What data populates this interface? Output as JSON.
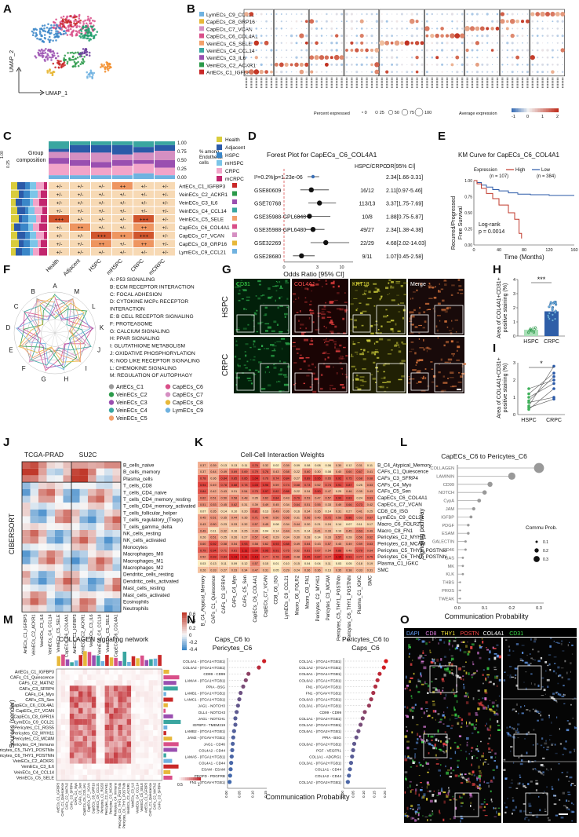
{
  "panels": {
    "A": {
      "letter": "A",
      "xlabel": "UMAP_1",
      "ylabel": "UMAP_2"
    },
    "B": {
      "letter": "B",
      "rows": [
        "LymECs_C9_CCL21",
        "CapECs_C8_GRP16",
        "CapECs_C7_VCAN",
        "CapECs_C6_COL4A1",
        "VeinECs_C5_SELE",
        "VeinECs_C4_CCL14",
        "VeinECs_C3_IL6",
        "VeinECs_C2_ACKR1",
        "ArtECs_C1_IGFBP3"
      ],
      "row_colors": [
        "#6fb2e0",
        "#e7b83a",
        "#d58fc2",
        "#d94f89",
        "#f2a06b",
        "#3aa6a0",
        "#9a4fb0",
        "#2c9a4a",
        "#c92828"
      ],
      "legend_pct_title": "Percent expressed",
      "legend_pct": [
        "0",
        "25",
        "50",
        "75",
        "100"
      ],
      "legend_exp_title": "Average expression",
      "legend_exp": [
        "-1",
        "0",
        "1",
        "2"
      ]
    },
    "C": {
      "letter": "C",
      "group_title": "Group composition",
      "y_ticks": [
        "1.00",
        "0.75",
        "0.50",
        "0.25",
        "0.00"
      ],
      "y_label": "% among Endothelial cells",
      "legend": [
        {
          "label": "Health",
          "color": "#d9cc3c"
        },
        {
          "label": "Adjacent",
          "color": "#2b5aa8"
        },
        {
          "label": "HSPC",
          "color": "#3a86c8"
        },
        {
          "label": "mHSPC",
          "color": "#7bc5e8"
        },
        {
          "label": "CRPC",
          "color": "#f2a4c9"
        },
        {
          "label": "mCRPC",
          "color": "#c2266e"
        }
      ],
      "columns": [
        "Health",
        "Adjacent",
        "HSPC",
        "mHSPC",
        "CRPC",
        "mCRPC"
      ],
      "rows": [
        "ArtECs_C1_IGFBP3",
        "VeinECs_C2_ACKR1",
        "VeinECs_C3_IL6",
        "VeinECs_C4_CCL14",
        "VeinECs_C5_SELE",
        "CapECs_C6_COL4A1",
        "CapECs_C7_VCAN",
        "CapECs_C8_GRP16",
        "LymECs_C9_CCL21"
      ],
      "cells": [
        [
          "+/-",
          "+/-",
          "+/-",
          "++",
          "+/-",
          "+/-"
        ],
        [
          "+/-",
          "+/-",
          "+/-",
          "+/-",
          "+/-",
          "+/-"
        ],
        [
          "+/-",
          "+/-",
          "+/-",
          "+/-",
          "+/-",
          "+/-"
        ],
        [
          "+/-",
          "+/-",
          "+/-",
          "+/-",
          "+/-",
          "+/-"
        ],
        [
          "+++",
          "+/-",
          "+/-",
          "+/-",
          "+++",
          "+/-"
        ],
        [
          "+/-",
          "++",
          "+/-",
          "+/-",
          "++",
          "+/-"
        ],
        [
          "+/-",
          "+/-",
          "+++",
          "++",
          "+++",
          "+/-"
        ],
        [
          "+/-",
          "+/-",
          "++",
          "+/-",
          "++",
          "+/-"
        ],
        [
          "+/-",
          "+/-",
          "+/-",
          "+/-",
          "+/-",
          "+/-"
        ]
      ]
    },
    "D": {
      "letter": "D",
      "title": "Forest Plot for CapECs_C6_COL4A1",
      "col1": "HSPC/CRPC",
      "col2": "OR[95% CI]",
      "xlabel": "Odds Ratio [95% CI]",
      "xticks": [
        "0",
        "3",
        "10"
      ],
      "rows": [
        {
          "study": "I²=0.2%|p=1.23e-06",
          "ratio": "",
          "or": "2.34[1.66-3.31]"
        },
        {
          "study": "GSE80609",
          "ratio": "16/12",
          "or": "2.11[0.97-5.46]"
        },
        {
          "study": "GSE70768",
          "ratio": "113/13",
          "or": "3.37[1.75-7.69]"
        },
        {
          "study": "GSE35988-GPL6848",
          "ratio": "10/8",
          "or": "1.88[0.75-5.87]"
        },
        {
          "study": "GSE35988-GPL6480",
          "ratio": "49/27",
          "or": "2.34[1.38-4.38]"
        },
        {
          "study": "GSE32269",
          "ratio": "22/29",
          "or": "4.68[2.02-14.03]"
        },
        {
          "study": "GSE28680",
          "ratio": "9/11",
          "or": "1.07[0.45-2.58]"
        }
      ]
    },
    "E": {
      "letter": "E",
      "title": "KM Curve for CapECs_C6_COL4A1",
      "legend_title": "Expression",
      "high": "High",
      "low": "Low",
      "high_n": "(n = 107)",
      "low_n": "(n = 384)",
      "ylabel": "Recurred/Progressed Free Survival",
      "xlabel": "Time (Months)",
      "test": "Log-rank",
      "p": "p = 0.0014",
      "xticks": [
        "0",
        "40",
        "80",
        "120",
        "160"
      ],
      "yticks": [
        "0.00",
        "0.25",
        "0.50",
        "0.75",
        "1.00"
      ]
    },
    "F": {
      "letter": "F",
      "axes": [
        "A",
        "M",
        "L",
        "K",
        "J",
        "I",
        "H",
        "G",
        "F",
        "E",
        "D",
        "C",
        "B"
      ],
      "pathways": [
        "A: P53 SIGNALING",
        "B: ECM RECEPTOR INTERACTION",
        "C: FOCAL ADHESION",
        "D: CYTOKINE MCPc RECEPTOR",
        "INTERACTION",
        "E: B CELL RECEPTOR SIGNALING",
        "F: PROTEASOME",
        "G: CALCIUM SIGNALING",
        "H: PPAR SIGNALING",
        "I: GLUTATHIONE METABOLISM",
        "J: OXIDATIVE PHOSPHORYLATION",
        "K: NOD LIKE RECEPTOR SIGNALING",
        "L: CHEMOKINE SIGNALING",
        "M: REGULATION OF AUTOPHAGY"
      ],
      "legend": [
        {
          "label": "ArtECs_C1",
          "color": "#9a9a9a"
        },
        {
          "label": "CapECs_C6",
          "color": "#d94f89"
        },
        {
          "label": "VeinECs_C2",
          "color": "#2c9a4a"
        },
        {
          "label": "CapECs_C7",
          "color": "#d58fc2"
        },
        {
          "label": "VeinECs_C3",
          "color": "#9a4fb0"
        },
        {
          "label": "CapECs_C8",
          "color": "#e7b83a"
        },
        {
          "label": "VeinECs_C4",
          "color": "#3aa6a0"
        },
        {
          "label": "LymECs_C9",
          "color": "#6fb2e0"
        },
        {
          "label": "VeinECs_C5",
          "color": "#f2a06b"
        }
      ]
    },
    "G": {
      "letter": "G",
      "channels": [
        "CD31",
        "COL4A1",
        "KRT18",
        "Merge"
      ],
      "rows": [
        "HSPC",
        "CRPC"
      ]
    },
    "H": {
      "letter": "H",
      "ylabel": "Area of COL4A1+CD31+ positive staining (%)",
      "categories": [
        "HSPC",
        "CRPC"
      ],
      "sig": "***",
      "yticks": [
        "0",
        "1",
        "2",
        "3",
        "4"
      ]
    },
    "I": {
      "letter": "I",
      "ylabel": "Area of COL4A1+CD31+ positive staining (%)",
      "categories": [
        "HSPC",
        "CRPC"
      ],
      "sig": "*",
      "yticks": [
        "0",
        "1",
        "2",
        "3"
      ]
    },
    "J": {
      "letter": "J",
      "cohorts": [
        "TCGA-PRAD",
        "SU2C"
      ],
      "ylabel": "CIBERSORT",
      "rows": [
        "B_cells_naive",
        "B_cells_memory",
        "Plasma_cells",
        "T_cells_CD8",
        "T_cells_CD4_naive",
        "T_cells_CD4_memory_resting",
        "T_cells_CD4_memory_activated",
        "T_cells_follicular_helper",
        "T_cells_regulatory_(Tregs)",
        "T_cells_gamma_delta",
        "NK_cells_resting",
        "NK_cells_activated",
        "Monocytes",
        "Macrophages_M0",
        "Macrophages_M1",
        "Macrophages_M2",
        "Dendritic_cells_resting",
        "Dendritic_cells_activated",
        "Mast_cells_resting",
        "Mast_cells_activated",
        "Eosinophils",
        "Neutrophils"
      ],
      "cols": [
        "ArtECs_C1_IGFBP3",
        "VeinECs_C2_ACKR1",
        "VeinECs_C3_IL6",
        "VeinECs_C4_CCL14",
        "VeinECs_C5_SELE",
        "CapECs_C6_COL4A1",
        "ArtECs_C1_IGFBP3",
        "VeinECs_C2_ACKR1",
        "VeinECs_C3_IL6",
        "VeinECs_C4_CCL14",
        "VeinECs_C5_SELE",
        "CapECs_C6_COL4A1"
      ],
      "legend": [
        "0.6",
        "0.4",
        "0.2",
        "0",
        "-0.2",
        "-0.4"
      ]
    },
    "K": {
      "letter": "K",
      "title": "Cell-Cell Interaction Weights",
      "rows": [
        "B_C4_Atypical_Memory",
        "CAFs_C1_Quiescence",
        "CAFs_C3_SFRP4",
        "CAFs_C4_Myo",
        "CAFs_C5_Sen",
        "CapECs_C6_COL4A1",
        "CapECs_C7_VCAN",
        "CD8_C6_ISG",
        "LymECs_C9_CCL21",
        "Macro_C6_FOLR2",
        "Macro_C8_FN1",
        "Pericytes_C2_MYH11",
        "Pericytes_C3_MCAM",
        "Pericytes_C5_THY1_POSTNlo",
        "Pericytes_C6_THY1_POSTNhi",
        "Plasma_C1_IGKC",
        "SMC"
      ],
      "cols": [
        "B_C4_Atypical_Memory",
        "CAFs_C1_Quiescence",
        "CAFs_C3_SFRP4",
        "CAFs_C4_Myo",
        "CAFs_C5_Sen",
        "CapECs_C6_COL4A1",
        "CapECs_C7_VCAN",
        "CD8_C6_ISG",
        "LymECs_C9_CCL21",
        "Macro_C6_FOLR2",
        "Macro_C8_FN1",
        "Pericytes_C2_MYH11",
        "Pericytes_C3_MCAM",
        "Pericytes_C5_THY1_POSTNlo",
        "Pericytes_C6_THY1_POSTNhi",
        "Plasma_C1_IGKC",
        "SMC"
      ],
      "values": [
        [
          0.37,
          0.39,
          0.13,
          0.13,
          0.11,
          0.76,
          0.32,
          0.02,
          0.39,
          0.09,
          0.08,
          0.08,
          0.06,
          0.3,
          0.12,
          0.31,
          0.11
        ],
        [
          0.37,
          0.44,
          0.49,
          0.69,
          0.69,
          0.79,
          0.76,
          0.43,
          0.58,
          0.22,
          0.6,
          0.3,
          0.08,
          0.4,
          0.6,
          0.67,
          0.41
        ],
        [
          0.78,
          0.36,
          0.84,
          0.85,
          0.85,
          1.04,
          0.76,
          0.74,
          0.84,
          0.27,
          0.89,
          0.95,
          0.65,
          0.92,
          0.75,
          0.68,
          0.68
        ],
        [
          0.94,
          0.49,
          0.78,
          0.88,
          0.78,
          1.03,
          0.96,
          0.59,
          0.74,
          0.68,
          0.73,
          0.52,
          0.74,
          0.91,
          0.87,
          0.25,
          0.53
        ],
        [
          0.84,
          0.42,
          0.43,
          0.31,
          0.54,
          0.75,
          0.97,
          0.82,
          0.88,
          0.22,
          0.34,
          0.9,
          0.47,
          0.25,
          0.46,
          0.35,
          0.43
        ],
        [
          0.62,
          0.51,
          0.5,
          0.58,
          0.48,
          0.35,
          0.62,
          0.84,
          0.43,
          0.79,
          0.53,
          0.47,
          0.57,
          0.9,
          0.83,
          0.24,
          0.63
        ],
        [
          0.51,
          0.53,
          0.45,
          0.62,
          0.31,
          0.39,
          0.49,
          0.45,
          0.34,
          0.64,
          0.51,
          0.55,
          0.33,
          0.49,
          0.66,
          0.73,
          0.42
        ],
        [
          0.07,
          0.35,
          0.14,
          0.1,
          0.2,
          0.81,
          0.13,
          0.49,
          0.36,
          0.16,
          0.34,
          0.35,
          0.14,
          0.31,
          0.27,
          0.41,
          0.25
        ],
        [
          0.45,
          0.51,
          0.35,
          0.44,
          0.35,
          0.71,
          0.49,
          0.5,
          0.56,
          0.31,
          0.56,
          0.46,
          0.72,
          0.58,
          0.86,
          0.53,
          0.67
        ],
        [
          0.43,
          0.5,
          0.23,
          0.33,
          0.32,
          0.57,
          0.45,
          0.08,
          0.34,
          0.44,
          0.3,
          0.21,
          0.24,
          0.14,
          0.07,
          0.11,
          0.17
        ],
        [
          0.49,
          0.11,
          0.32,
          0.16,
          0.25,
          0.39,
          0.04,
          0.14,
          0.44,
          0.21,
          0.14,
          0.41,
          0.33,
          0.16,
          0.45,
          0.63,
          0.49
        ],
        [
          0.26,
          0.51,
          0.25,
          0.26,
          0.27,
          0.57,
          0.42,
          0.29,
          0.34,
          0.3,
          0.28,
          0.14,
          0.33,
          0.57,
          0.28,
          0.56,
          0.62
        ],
        [
          0.6,
          0.92,
          0.58,
          0.54,
          0.93,
          0.58,
          0.62,
          0.93,
          0.88,
          0.49,
          0.64,
          0.43,
          0.57,
          0.45,
          0.49,
          0.59,
          0.63
        ],
        [
          0.79,
          0.94,
          0.71,
          0.81,
          1.11,
          1.0,
          0.95,
          0.91,
          0.75,
          0.52,
          0.81,
          0.67,
          0.54,
          0.88,
          0.48,
          0.79,
          0.64
        ],
        [
          0.52,
          0.93,
          0.84,
          1.13,
          1.11,
          1.13,
          0.77,
          0.76,
          0.86,
          0.48,
          0.95,
          0.87,
          0.77,
          1.15,
          0.91,
          0.77,
          0.75
        ],
        [
          0.03,
          0.13,
          0.11,
          0.09,
          0.12,
          0.57,
          0.15,
          0.01,
          0.1,
          0.15,
          0.04,
          0.04,
          0.11,
          0.03,
          0.05,
          0.18,
          0.19
        ],
        [
          0.26,
          0.33,
          0.27,
          0.33,
          0.34,
          0.47,
          0.31,
          0.05,
          0.29,
          0.24,
          0.36,
          0.36,
          0.13,
          0.35,
          0.38,
          0.33,
          0.31
        ]
      ]
    },
    "L": {
      "letter": "L",
      "title": "CapECs_C6 to Pericytes_C6",
      "ylabel": "Signaling pathway",
      "xlabel": "Communication Probability",
      "legend_title": "Commu Prob.",
      "legend": [
        "0.1",
        "0.2",
        "0.3"
      ],
      "xticks": [
        "0.0",
        "0.1",
        "0.2",
        "0.3"
      ],
      "pathways": [
        "COLLAGEN",
        "LAMININ",
        "CD99",
        "NOTCH",
        "CypA",
        "JAM",
        "IGFBP",
        "PDGF",
        "ESAM",
        "GALECTIN",
        "CD46",
        "GAS",
        "MK",
        "KLK",
        "THBS",
        "PROS",
        "TWEAK"
      ],
      "values": [
        0.3,
        0.2,
        0.12,
        0.1,
        0.08,
        0.06,
        0.05,
        0.04,
        0.04,
        0.03,
        0.03,
        0.02,
        0.02,
        0.02,
        0.01,
        0.01,
        0.01
      ]
    },
    "M": {
      "letter": "M",
      "title": "COLLAGEN signaling network",
      "ylabel": "Sources (sender)",
      "legend": [
        "0.5",
        "1"
      ],
      "senders": [
        "ArtECs_C1_IGFBP3",
        "CAFs_C1_Quiescence",
        "CAFs_C2_MATN2",
        "CAFs_C3_SFRP4",
        "CAFs_C4_Myo",
        "CAFs_C5_Sen",
        "CapECs_C6_COL4A1",
        "CapECs_C7_VCAN",
        "CapECs_C8_GPR16",
        "LymECs_C9_CCL21",
        "Pericytes_C1_RGS5",
        "Pericytes_C2_MYH11",
        "Pericytes_C3_MCAM",
        "Pericytes_C4_Immuno",
        "Pericytes_C5_THY1_POSTNlo",
        "Pericytes_C6_THY1_POSTNhi",
        "VeinECs_C2_ACKR1",
        "VeinECs_C3_IL6",
        "VeinECs_C4_CCL14",
        "VeinECs_C5_SELE"
      ]
    },
    "N": {
      "letter": "N",
      "xlabel": "Communication Probability",
      "left": {
        "title": "Caps_C6 to Pericytes_C6",
        "xticks": [
          "0.00",
          "0.05",
          "0.10",
          "0.15"
        ],
        "pairs": [
          "COL4A1 - (ITGA1+ITGB1)",
          "COL4A2 - (ITGA1+ITGB1)",
          "CD99 - CD99",
          "LAMA4 - (ITGA1+ITGB1)",
          "PPIA - BSG",
          "LAMB1 - (ITGA1+ITGB1)",
          "LAMC1 - (ITGA1+ITGB1)",
          "JAG1 - NOTCH3",
          "DLL4 - NOTCH3",
          "JAG1 - NOTCH1",
          "IGFBP3 - TMEM219",
          "LAMB2 - (ITGA1+ITGB1)",
          "JAM2 - (ITGAV+ITGB1)",
          "JAG1 - CD46",
          "COL4A2 - CD44",
          "LAMA5 - (ITGA1+ITGB1)",
          "COL4A1 - CD44",
          "ESAM - ESAM",
          "PDGFD - PDGFRB",
          "FN1 - (ITGAV+ITGB1)"
        ],
        "values": [
          0.14,
          0.12,
          0.08,
          0.07,
          0.06,
          0.05,
          0.045,
          0.04,
          0.035,
          0.03,
          0.03,
          0.025,
          0.022,
          0.02,
          0.018,
          0.016,
          0.014,
          0.012,
          0.01,
          0.008
        ]
      },
      "right": {
        "title": "Pericytes_C6 to Caps_C6",
        "xticks": [
          "0.00",
          "0.05",
          "0.10",
          "0.15",
          "0.20"
        ],
        "pairs": [
          "COL1A1 - (ITGA1+ITGB1)",
          "COL1A2 - (ITGA1+ITGB1)",
          "COL6A1 - (ITGA1+ITGB1)",
          "COL6A2 - (ITGA1+ITGB1)",
          "FN1 - (ITGA5+ITGB1)",
          "FN1 - (ITGAV+ITGB1)",
          "COL6A3 - (ITGA1+ITGB1)",
          "COL3A1 - (ITGA1+ITGB1)",
          "CD99 - CD99",
          "COL1A1 - (ITGA2+ITGB1)",
          "COL1A2 - (ITGA2+ITGB1)",
          "COL6A1 - (ITGA2+ITGB1)",
          "PPIA - BSG",
          "COL6A2 - (ITGA2+ITGB1)",
          "PGF - VEGFR1",
          "COL1A1 - ADGRG1",
          "COL3A1 - (ITGA2+ITGB1)",
          "COL1A1 - CD44",
          "COL1A2 - CD44",
          "COL1A2 - (ITGA2+ITGB1)"
        ],
        "values": [
          0.2,
          0.19,
          0.17,
          0.16,
          0.15,
          0.14,
          0.13,
          0.12,
          0.1,
          0.09,
          0.08,
          0.07,
          0.06,
          0.05,
          0.045,
          0.04,
          0.035,
          0.03,
          0.025,
          0.02
        ]
      }
    },
    "O": {
      "letter": "O",
      "channels": [
        "DAPI",
        "CD8",
        "THY1",
        "POSTN",
        "COL4A1",
        "CD31"
      ],
      "channel_colors": [
        "#6aa6ff",
        "#e07ee0",
        "#f2e23a",
        "#ff4a4a",
        "#ffffff",
        "#3ddc4a"
      ]
    }
  }
}
